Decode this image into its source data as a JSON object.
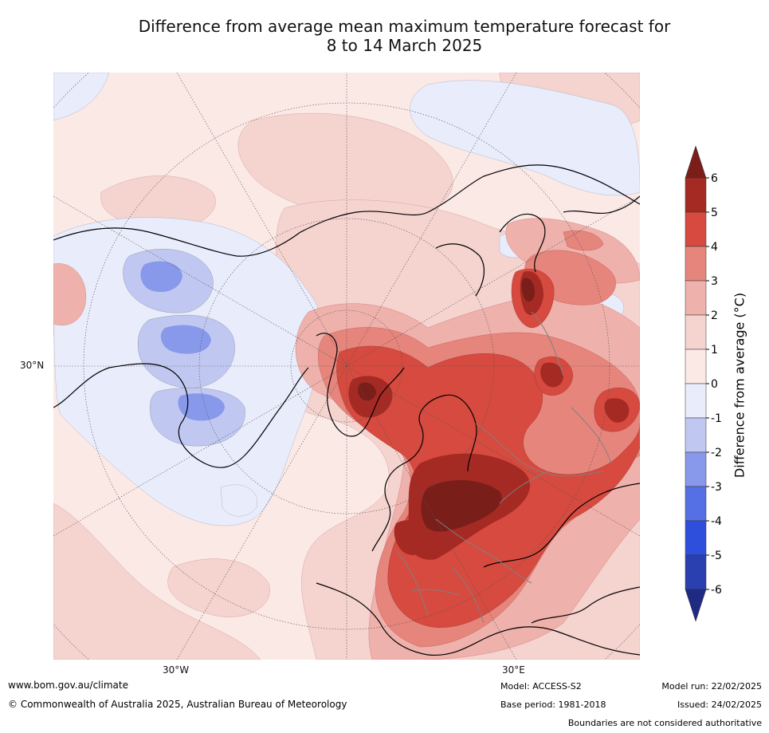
{
  "title_line1": "Difference from average mean maximum temperature forecast for",
  "title_line2": "8 to 14 March 2025",
  "map": {
    "lat_label": "30°N",
    "lon_labels": [
      "30°W",
      "30°E"
    ],
    "colors": {
      "ocean_bg": "#fbe9e6",
      "lightpink": "#f5d3cf",
      "pink": "#eeb1ab",
      "salmon": "#e6857c",
      "red": "#d64a3f",
      "darkred": "#a52a23",
      "maroon": "#7a1e1a",
      "lightblue": "#e8ecfb",
      "blue1": "#c0c8f1",
      "blue2": "#8899eb"
    }
  },
  "colorbar": {
    "label": "Difference from average (°C)",
    "ticks": [
      "6",
      "5",
      "4",
      "3",
      "2",
      "1",
      "0",
      "-1",
      "-2",
      "-3",
      "-4",
      "-5",
      "-6"
    ],
    "colors": [
      "#7a1e1a",
      "#a52a23",
      "#d64a3f",
      "#e6857c",
      "#eeb1ab",
      "#f5d3cf",
      "#fbe9e6",
      "#e8ecfb",
      "#c0c8f1",
      "#8899eb",
      "#5470e4",
      "#2e4fdc",
      "#2a3fb0",
      "#1f2b82"
    ]
  },
  "footer": {
    "website": "www.bom.gov.au/climate",
    "copyright": "© Commonwealth of Australia 2025, Australian Bureau of Meteorology",
    "model": "Model: ACCESS-S2",
    "base_period": "Base period: 1981-2018",
    "model_run": "Model run: 22/02/2025",
    "issued": "Issued: 24/02/2025",
    "disclaimer": "Boundaries are not considered authoritative"
  }
}
